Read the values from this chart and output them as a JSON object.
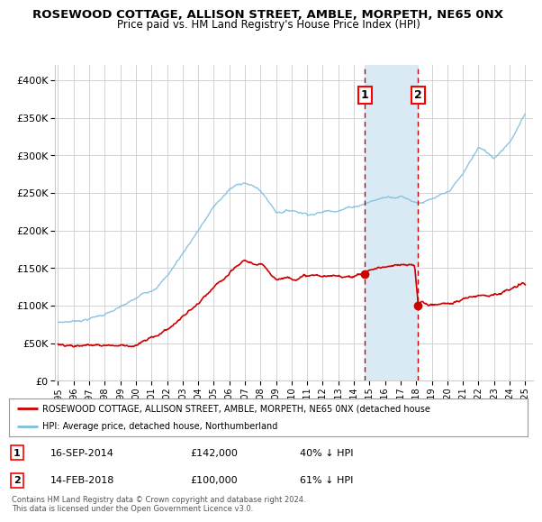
{
  "title": "ROSEWOOD COTTAGE, ALLISON STREET, AMBLE, MORPETH, NE65 0NX",
  "subtitle": "Price paid vs. HM Land Registry's House Price Index (HPI)",
  "ylim": [
    0,
    420000
  ],
  "yticks": [
    0,
    50000,
    100000,
    150000,
    200000,
    250000,
    300000,
    350000,
    400000
  ],
  "marker1_date": 2014.71,
  "marker1_price": 142000,
  "marker1_text": "16-SEP-2014",
  "marker1_price_text": "£142,000",
  "marker1_hpi": "40% ↓ HPI",
  "marker2_date": 2018.12,
  "marker2_price": 100000,
  "marker2_text": "14-FEB-2018",
  "marker2_price_text": "£100,000",
  "marker2_hpi": "61% ↓ HPI",
  "hpi_color": "#7fbfdf",
  "price_color": "#cc0000",
  "background_color": "#ffffff",
  "grid_color": "#cccccc",
  "shading_color": "#daeaf5",
  "legend_text_red": "ROSEWOOD COTTAGE, ALLISON STREET, AMBLE, MORPETH, NE65 0NX (detached house",
  "legend_text_blue": "HPI: Average price, detached house, Northumberland",
  "footer": "Contains HM Land Registry data © Crown copyright and database right 2024.\nThis data is licensed under the Open Government Licence v3.0.",
  "hpi_key_years": [
    1995,
    1996,
    1997,
    1998,
    1999,
    2000,
    2001,
    2002,
    2003,
    2004,
    2005,
    2006,
    2007,
    2008,
    2009,
    2010,
    2011,
    2012,
    2013,
    2014,
    2015,
    2016,
    2017,
    2018,
    2019,
    2020,
    2021,
    2022,
    2023,
    2024,
    2025.0
  ],
  "hpi_key_vals": [
    78000,
    80000,
    84000,
    90000,
    97000,
    106000,
    118000,
    138000,
    168000,
    200000,
    230000,
    252000,
    262000,
    250000,
    222000,
    225000,
    222000,
    225000,
    230000,
    235000,
    242000,
    248000,
    252000,
    245000,
    248000,
    252000,
    275000,
    310000,
    295000,
    320000,
    355000
  ],
  "price_key_years": [
    1995,
    1996,
    1997,
    1998,
    1999,
    2000,
    2001,
    2002,
    2003,
    2004,
    2005,
    2006,
    2007,
    2008,
    2009,
    2010,
    2011,
    2012,
    2013,
    2014,
    2014.71,
    2015,
    2016,
    2017,
    2017.9,
    2018.12,
    2019,
    2020,
    2021,
    2022,
    2023,
    2024,
    2025.0
  ],
  "price_key_vals": [
    49000,
    50000,
    51000,
    52000,
    53000,
    55000,
    62000,
    75000,
    92000,
    108000,
    125000,
    140000,
    155000,
    148000,
    132000,
    136000,
    140000,
    138000,
    135000,
    140000,
    142000,
    148000,
    152000,
    150000,
    148000,
    100000,
    98000,
    100000,
    105000,
    112000,
    118000,
    122000,
    128000
  ]
}
